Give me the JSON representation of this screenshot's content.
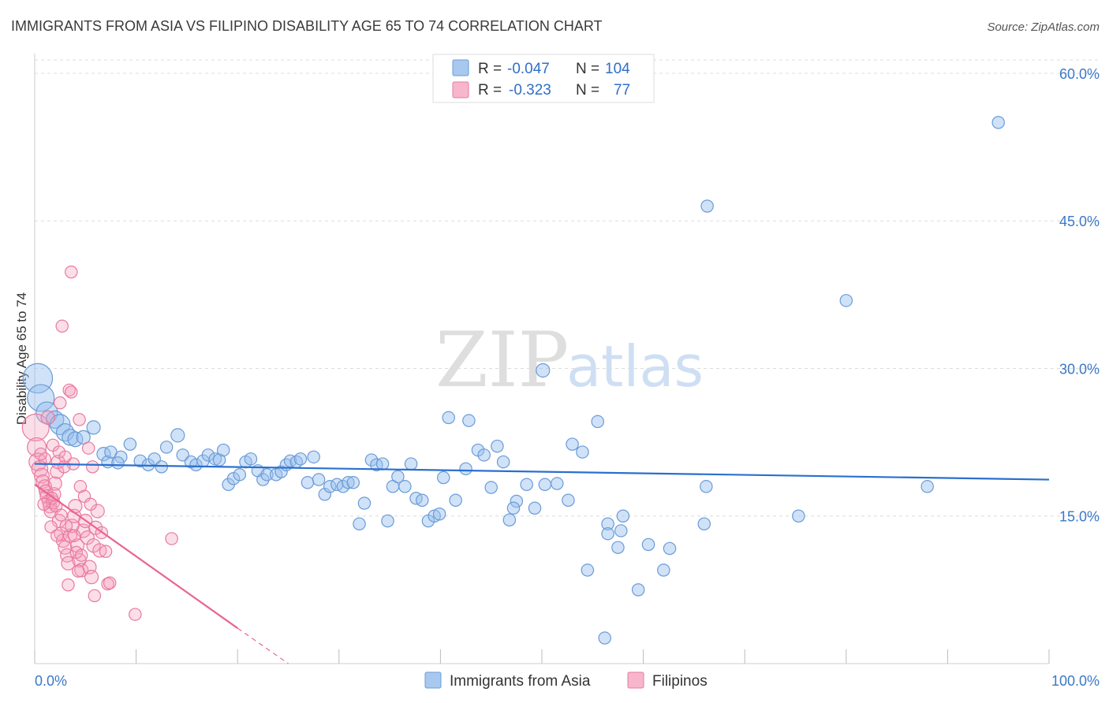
{
  "header": {
    "title": "IMMIGRANTS FROM ASIA VS FILIPINO DISABILITY AGE 65 TO 74 CORRELATION CHART",
    "source": "Source: ZipAtlas.com"
  },
  "watermark": {
    "zip": "ZIP",
    "atlas": "atlas"
  },
  "legend": {
    "rows": [
      {
        "r_label": "R =",
        "r_value": "-0.047",
        "n_label": "N =",
        "n_value": "104",
        "color": "#a8c8f0",
        "stroke": "#6a9bd8"
      },
      {
        "r_label": "R =",
        "r_value": "-0.323",
        "n_label": "N =",
        "n_value": "77",
        "color": "#f7b6cb",
        "stroke": "#e87aa0"
      }
    ]
  },
  "bottom_legend": {
    "items": [
      {
        "label": "Immigrants from Asia",
        "color": "#a8c8f0",
        "stroke": "#6a9bd8"
      },
      {
        "label": "Filipinos",
        "color": "#f7b6cb",
        "stroke": "#e87aa0"
      }
    ]
  },
  "colors": {
    "asia_fill": "rgba(150,190,238,0.45)",
    "asia_stroke": "#6a9bd8",
    "asia_line": "#2a6fcf",
    "fil_fill": "rgba(245,160,190,0.35)",
    "fil_stroke": "#e87aa0",
    "fil_line": "#e8668f",
    "grid": "#dcdcdc",
    "axis_tick": "#3a78c8"
  },
  "chart_data": {
    "type": "scatter",
    "title": "IMMIGRANTS FROM ASIA VS FILIPINO DISABILITY AGE 65 TO 74 CORRELATION CHART",
    "xlabel": "",
    "ylabel": "Disability Age 65 to 74",
    "xlim": [
      0,
      100
    ],
    "ylim": [
      0,
      62
    ],
    "x_tick_labels": [
      "0.0%",
      "100.0%"
    ],
    "y_ticks": [
      15,
      30,
      45,
      60
    ],
    "y_tick_labels": [
      "15.0%",
      "30.0%",
      "45.0%",
      "60.0%"
    ],
    "grid": true,
    "legend_position": "top-center",
    "series": [
      {
        "name": "Immigrants from Asia",
        "r": -0.047,
        "n": 104,
        "trend": {
          "x": [
            0,
            100
          ],
          "y": [
            20.3,
            18.7
          ]
        },
        "points": [
          [
            0.3,
            29.0,
            2.2
          ],
          [
            0.6,
            27.0,
            2.0
          ],
          [
            1.2,
            25.5,
            1.6
          ],
          [
            2.0,
            24.8,
            1.3
          ],
          [
            2.5,
            24.3,
            1.5
          ],
          [
            3.0,
            23.5,
            1.3
          ],
          [
            3.5,
            23.0,
            1.2
          ],
          [
            4.0,
            22.8,
            1.1
          ],
          [
            4.8,
            23.0,
            1.0
          ],
          [
            5.8,
            24.0,
            1.0
          ],
          [
            6.8,
            21.3,
            1.0
          ],
          [
            7.2,
            20.5,
            0.9
          ],
          [
            7.5,
            21.5,
            0.9
          ],
          [
            8.5,
            21.0,
            0.9
          ],
          [
            8.2,
            20.4,
            0.9
          ],
          [
            9.4,
            22.3,
            0.9
          ],
          [
            10.4,
            20.6,
            0.9
          ],
          [
            11.2,
            20.2,
            0.9
          ],
          [
            11.8,
            20.8,
            0.9
          ],
          [
            12.5,
            20.0,
            0.9
          ],
          [
            13.0,
            22.0,
            0.9
          ],
          [
            14.1,
            23.2,
            1.0
          ],
          [
            14.6,
            21.2,
            0.9
          ],
          [
            15.4,
            20.5,
            0.9
          ],
          [
            15.9,
            20.2,
            0.9
          ],
          [
            16.6,
            20.6,
            0.9
          ],
          [
            17.1,
            21.2,
            0.9
          ],
          [
            17.8,
            20.8,
            0.9
          ],
          [
            18.2,
            20.7,
            0.9
          ],
          [
            18.6,
            21.7,
            0.9
          ],
          [
            19.1,
            18.2,
            0.9
          ],
          [
            19.6,
            18.8,
            0.9
          ],
          [
            20.2,
            19.2,
            0.9
          ],
          [
            20.8,
            20.5,
            0.9
          ],
          [
            21.3,
            20.8,
            0.9
          ],
          [
            22.0,
            19.6,
            0.9
          ],
          [
            22.5,
            18.7,
            0.9
          ],
          [
            22.9,
            19.2,
            0.9
          ],
          [
            23.8,
            19.2,
            0.9
          ],
          [
            24.3,
            19.5,
            0.9
          ],
          [
            24.8,
            20.2,
            0.9
          ],
          [
            25.2,
            20.6,
            0.9
          ],
          [
            25.8,
            20.5,
            0.9
          ],
          [
            26.2,
            20.8,
            0.9
          ],
          [
            26.9,
            18.4,
            0.9
          ],
          [
            27.5,
            21.0,
            0.9
          ],
          [
            28.0,
            18.7,
            0.9
          ],
          [
            28.6,
            17.2,
            0.9
          ],
          [
            29.1,
            18.0,
            0.9
          ],
          [
            29.8,
            18.2,
            0.9
          ],
          [
            30.4,
            18.0,
            0.9
          ],
          [
            30.9,
            18.4,
            0.9
          ],
          [
            31.4,
            18.4,
            0.9
          ],
          [
            32.0,
            14.2,
            0.9
          ],
          [
            32.5,
            16.3,
            0.9
          ],
          [
            33.2,
            20.7,
            0.9
          ],
          [
            33.7,
            20.2,
            0.9
          ],
          [
            34.3,
            20.3,
            0.9
          ],
          [
            34.8,
            14.5,
            0.9
          ],
          [
            35.3,
            18.0,
            0.9
          ],
          [
            35.8,
            19.0,
            0.9
          ],
          [
            36.5,
            18.0,
            0.9
          ],
          [
            37.1,
            20.3,
            0.9
          ],
          [
            37.6,
            16.8,
            0.9
          ],
          [
            38.2,
            16.6,
            0.9
          ],
          [
            38.8,
            14.5,
            0.9
          ],
          [
            39.4,
            15.0,
            0.9
          ],
          [
            39.9,
            15.2,
            0.9
          ],
          [
            40.3,
            18.9,
            0.9
          ],
          [
            40.8,
            25.0,
            0.9
          ],
          [
            41.5,
            16.6,
            0.9
          ],
          [
            42.5,
            19.8,
            0.9
          ],
          [
            42.8,
            24.7,
            0.9
          ],
          [
            43.7,
            21.7,
            0.9
          ],
          [
            44.3,
            21.2,
            0.9
          ],
          [
            45.0,
            17.9,
            0.9
          ],
          [
            45.6,
            22.1,
            0.9
          ],
          [
            46.2,
            20.5,
            0.9
          ],
          [
            46.8,
            14.6,
            0.9
          ],
          [
            47.5,
            16.5,
            0.9
          ],
          [
            47.2,
            15.8,
            0.9
          ],
          [
            48.5,
            18.2,
            0.9
          ],
          [
            49.3,
            15.8,
            0.9
          ],
          [
            50.3,
            18.2,
            0.9
          ],
          [
            51.5,
            18.3,
            0.9
          ],
          [
            52.6,
            16.6,
            0.9
          ],
          [
            53.0,
            22.3,
            0.9
          ],
          [
            54.0,
            21.5,
            0.9
          ],
          [
            55.5,
            24.6,
            0.9
          ],
          [
            56.5,
            14.2,
            0.9
          ],
          [
            56.5,
            13.2,
            0.9
          ],
          [
            57.5,
            11.8,
            0.9
          ],
          [
            57.8,
            13.5,
            0.9
          ],
          [
            58.0,
            15.0,
            0.9
          ],
          [
            59.5,
            7.5,
            0.9
          ],
          [
            60.5,
            12.1,
            0.9
          ],
          [
            62.0,
            9.5,
            0.9
          ],
          [
            62.6,
            11.7,
            0.9
          ],
          [
            54.5,
            9.5,
            0.9
          ],
          [
            56.2,
            2.6,
            0.9
          ],
          [
            50.1,
            29.8,
            1.0
          ],
          [
            66.0,
            14.2,
            0.9
          ],
          [
            66.2,
            18.0,
            0.9
          ],
          [
            66.3,
            46.5,
            0.9
          ],
          [
            75.3,
            15.0,
            0.9
          ],
          [
            80.0,
            36.9,
            0.9
          ],
          [
            88.0,
            18.0,
            0.9
          ],
          [
            95.0,
            55.0,
            0.9
          ]
        ]
      },
      {
        "name": "Filipinos",
        "r": -0.323,
        "n": 77,
        "trend": {
          "x": [
            0,
            20,
            25
          ],
          "y": [
            18.2,
            3.6,
            0.0
          ]
        },
        "points": [
          [
            0.1,
            24.0,
            2.0
          ],
          [
            0.2,
            22.0,
            1.4
          ],
          [
            0.3,
            20.5,
            1.3
          ],
          [
            0.5,
            19.8,
            1.2
          ],
          [
            0.7,
            19.1,
            1.1
          ],
          [
            0.8,
            18.5,
            1.0
          ],
          [
            1.0,
            18.0,
            1.0
          ],
          [
            1.1,
            17.5,
            1.0
          ],
          [
            1.2,
            17.0,
            1.0
          ],
          [
            1.4,
            16.5,
            1.0
          ],
          [
            1.5,
            16.0,
            1.0
          ],
          [
            1.6,
            15.5,
            1.0
          ],
          [
            1.8,
            16.4,
            1.0
          ],
          [
            1.9,
            17.2,
            1.0
          ],
          [
            2.0,
            18.3,
            1.0
          ],
          [
            2.2,
            19.5,
            1.0
          ],
          [
            2.3,
            20.5,
            1.0
          ],
          [
            2.4,
            14.5,
            1.0
          ],
          [
            2.6,
            13.2,
            1.0
          ],
          [
            2.8,
            12.5,
            1.0
          ],
          [
            3.0,
            11.8,
            1.0
          ],
          [
            3.2,
            11.0,
            1.0
          ],
          [
            3.3,
            10.2,
            1.0
          ],
          [
            3.5,
            13.0,
            1.0
          ],
          [
            3.7,
            14.0,
            1.0
          ],
          [
            3.9,
            15.0,
            1.0
          ],
          [
            4.0,
            16.0,
            1.0
          ],
          [
            4.2,
            12.0,
            1.0
          ],
          [
            4.4,
            10.5,
            1.0
          ],
          [
            4.6,
            9.5,
            1.0
          ],
          [
            4.8,
            13.5,
            1.0
          ],
          [
            5.0,
            14.5,
            1.0
          ],
          [
            5.2,
            12.8,
            1.0
          ],
          [
            5.4,
            9.8,
            1.0
          ],
          [
            5.6,
            8.8,
            1.0
          ],
          [
            5.8,
            12.0,
            1.0
          ],
          [
            6.0,
            13.8,
            1.0
          ],
          [
            6.2,
            15.5,
            1.0
          ],
          [
            6.4,
            11.5,
            1.0
          ],
          [
            1.3,
            25.0,
            1.0
          ],
          [
            2.5,
            26.5,
            0.9
          ],
          [
            3.4,
            27.8,
            0.9
          ],
          [
            3.6,
            27.6,
            0.9
          ],
          [
            4.4,
            24.8,
            0.9
          ],
          [
            2.7,
            34.3,
            0.9
          ],
          [
            3.6,
            39.8,
            0.9
          ],
          [
            1.8,
            22.2,
            0.9
          ],
          [
            2.4,
            21.5,
            0.9
          ],
          [
            3.0,
            21.0,
            0.9
          ],
          [
            3.8,
            20.3,
            0.9
          ],
          [
            5.3,
            21.9,
            0.9
          ],
          [
            5.7,
            20.0,
            0.9
          ],
          [
            4.5,
            18.0,
            0.9
          ],
          [
            4.9,
            17.0,
            0.9
          ],
          [
            5.5,
            16.2,
            0.9
          ],
          [
            2.9,
            20.0,
            0.9
          ],
          [
            3.9,
            13.0,
            0.9
          ],
          [
            4.1,
            11.3,
            0.9
          ],
          [
            4.6,
            11.0,
            0.9
          ],
          [
            6.6,
            13.3,
            0.9
          ],
          [
            7.0,
            11.4,
            0.9
          ],
          [
            7.2,
            8.1,
            0.9
          ],
          [
            7.4,
            8.2,
            0.9
          ],
          [
            5.9,
            6.9,
            0.9
          ],
          [
            9.9,
            5.0,
            0.9
          ],
          [
            13.5,
            12.7,
            0.9
          ],
          [
            1.7,
            16.8,
            0.9
          ],
          [
            2.1,
            16.0,
            0.9
          ],
          [
            2.6,
            15.1,
            0.9
          ],
          [
            3.1,
            14.0,
            0.9
          ],
          [
            1.0,
            20.8,
            0.9
          ],
          [
            0.6,
            21.3,
            0.9
          ],
          [
            0.9,
            16.2,
            0.9
          ],
          [
            1.6,
            13.9,
            0.9
          ],
          [
            2.2,
            13.0,
            0.9
          ],
          [
            3.3,
            8.0,
            0.9
          ],
          [
            4.3,
            9.4,
            0.9
          ]
        ]
      }
    ]
  }
}
